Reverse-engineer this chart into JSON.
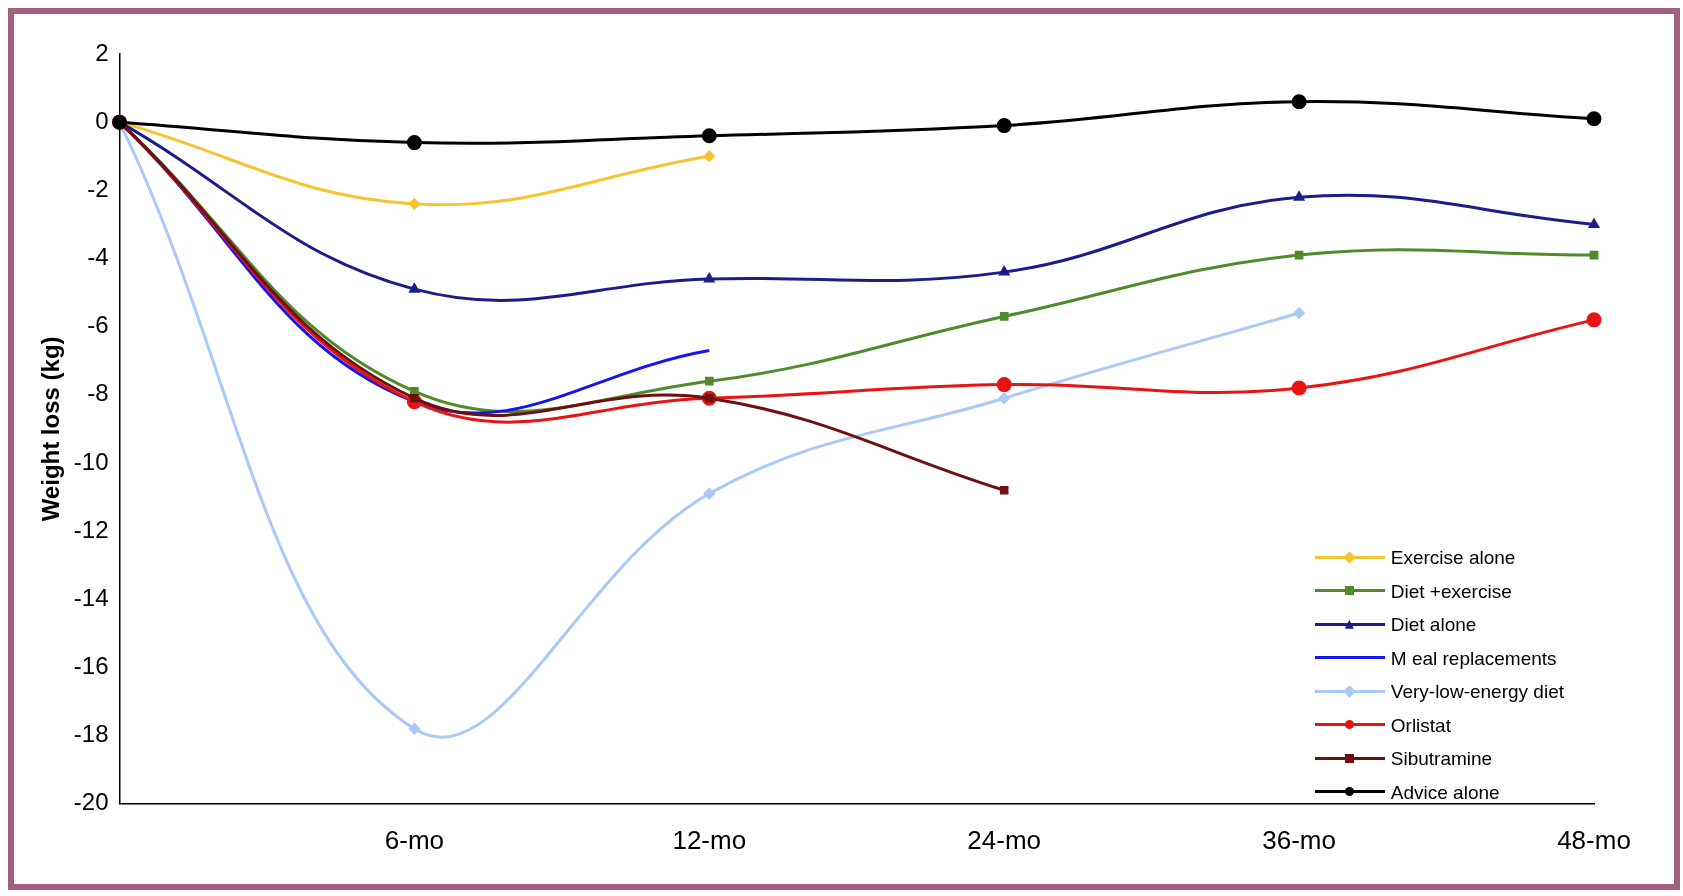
{
  "chart_data": {
    "type": "line",
    "ylabel": "Weight loss (kg)",
    "categories": [
      null,
      "6-mo",
      "12-mo",
      "24-mo",
      "36-mo",
      "48-mo"
    ],
    "ylim": [
      -20,
      2
    ],
    "yticks": [
      -20,
      -18,
      -16,
      -14,
      -12,
      -10,
      -8,
      -6,
      -4,
      -2,
      0,
      2
    ],
    "grid": false,
    "legend": "bottom right",
    "series": [
      {
        "name": "Exercise alone",
        "color": "#f5c431",
        "marker": "diamond",
        "values": [
          0,
          -2.4,
          -1.0,
          null,
          null,
          null
        ]
      },
      {
        "name": "Diet +exercise",
        "color": "#4f8a2b",
        "marker": "square",
        "values": [
          0,
          -7.9,
          -7.6,
          -5.7,
          -3.9,
          -3.9
        ]
      },
      {
        "name": "Diet alone",
        "color": "#1c1c8a",
        "marker": "triangle",
        "values": [
          0,
          -4.9,
          -4.6,
          -4.4,
          -2.2,
          -3.0
        ]
      },
      {
        "name": "M eal replacements",
        "color": "#1414f0",
        "marker": "none",
        "values": [
          0,
          -8.2,
          -6.7,
          null,
          null,
          null
        ]
      },
      {
        "name": "Very-low-energy diet",
        "color": "#a9c9f7",
        "marker": "diamond",
        "values": [
          0,
          -17.8,
          -10.9,
          -8.1,
          -5.6,
          null
        ]
      },
      {
        "name": "Orlistat",
        "color": "#e81414",
        "marker": "circle",
        "values": [
          0,
          -8.2,
          -8.1,
          -7.7,
          -7.8,
          -5.8
        ]
      },
      {
        "name": "Sibutramine",
        "color": "#6e1010",
        "marker": "square",
        "values": [
          0,
          -8.1,
          -8.1,
          -10.8,
          null,
          null
        ]
      },
      {
        "name": "Advice alone",
        "color": "#000000",
        "marker": "circle",
        "values": [
          0,
          -0.6,
          -0.4,
          -0.1,
          0.6,
          0.1
        ]
      }
    ]
  }
}
